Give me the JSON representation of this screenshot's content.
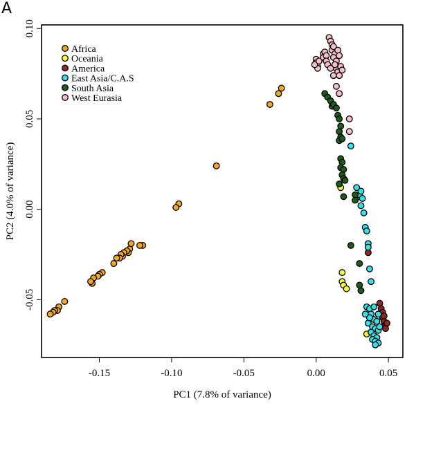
{
  "panel_label": "A",
  "chart_data": {
    "type": "scatter",
    "title": "",
    "xlabel": "PC1 (7.8% of variance)",
    "ylabel": "PC2 (4.0% of variance)",
    "xlim": [
      -0.19,
      0.06
    ],
    "ylim": [
      -0.082,
      0.102
    ],
    "xticks": [
      -0.15,
      -0.1,
      -0.05,
      0.0,
      0.05
    ],
    "xtick_labels": [
      "-0.15",
      "-0.10",
      "-0.05",
      "0.00",
      "0.05"
    ],
    "yticks": [
      -0.05,
      0.0,
      0.05,
      0.1
    ],
    "ytick_labels": [
      "-0.05",
      "0.00",
      "0.05",
      "0.10"
    ],
    "grid": false,
    "legend_position": "top-left",
    "series": [
      {
        "name": "Africa",
        "color": "#f5a623",
        "points": [
          [
            -0.024,
            0.067
          ],
          [
            -0.026,
            0.064
          ],
          [
            -0.032,
            0.058
          ],
          [
            -0.069,
            0.024
          ],
          [
            -0.095,
            0.003
          ],
          [
            -0.097,
            0.001
          ],
          [
            -0.12,
            -0.02
          ],
          [
            -0.122,
            -0.02
          ],
          [
            -0.128,
            -0.019
          ],
          [
            -0.129,
            -0.022
          ],
          [
            -0.13,
            -0.024
          ],
          [
            -0.131,
            -0.023
          ],
          [
            -0.133,
            -0.024
          ],
          [
            -0.134,
            -0.026
          ],
          [
            -0.135,
            -0.025
          ],
          [
            -0.136,
            -0.027
          ],
          [
            -0.138,
            -0.027
          ],
          [
            -0.14,
            -0.03
          ],
          [
            -0.148,
            -0.035
          ],
          [
            -0.15,
            -0.036
          ],
          [
            -0.151,
            -0.037
          ],
          [
            -0.154,
            -0.038
          ],
          [
            -0.155,
            -0.041
          ],
          [
            -0.156,
            -0.04
          ],
          [
            -0.174,
            -0.051
          ],
          [
            -0.178,
            -0.054
          ],
          [
            -0.179,
            -0.056
          ],
          [
            -0.181,
            -0.056
          ],
          [
            -0.182,
            -0.057
          ],
          [
            -0.184,
            -0.058
          ]
        ]
      },
      {
        "name": "Oceania",
        "color": "#ffff33",
        "points": [
          [
            0.017,
            0.012
          ],
          [
            0.018,
            -0.035
          ],
          [
            0.018,
            -0.04
          ],
          [
            0.019,
            -0.042
          ],
          [
            0.021,
            -0.044
          ],
          [
            0.035,
            -0.069
          ]
        ]
      },
      {
        "name": "America",
        "color": "#8b2a26",
        "points": [
          [
            0.036,
            -0.024
          ],
          [
            0.044,
            -0.052
          ],
          [
            0.045,
            -0.055
          ],
          [
            0.046,
            -0.057
          ],
          [
            0.046,
            -0.06
          ],
          [
            0.047,
            -0.062
          ],
          [
            0.048,
            -0.064
          ],
          [
            0.048,
            -0.066
          ],
          [
            0.049,
            -0.063
          ],
          [
            0.047,
            -0.059
          ]
        ]
      },
      {
        "name": "East Asia/C.A.S",
        "color": "#35e0e8",
        "points": [
          [
            0.024,
            0.035
          ],
          [
            0.028,
            0.012
          ],
          [
            0.029,
            0.007
          ],
          [
            0.03,
            0.008
          ],
          [
            0.031,
            0.01
          ],
          [
            0.032,
            0.006
          ],
          [
            0.031,
            0.002
          ],
          [
            0.033,
            -0.002
          ],
          [
            0.034,
            -0.01
          ],
          [
            0.035,
            -0.012
          ],
          [
            0.036,
            -0.019
          ],
          [
            0.036,
            -0.021
          ],
          [
            0.037,
            -0.033
          ],
          [
            0.038,
            -0.04
          ],
          [
            0.035,
            -0.054
          ],
          [
            0.037,
            -0.055
          ],
          [
            0.04,
            -0.054
          ],
          [
            0.038,
            -0.058
          ],
          [
            0.04,
            -0.061
          ],
          [
            0.042,
            -0.062
          ],
          [
            0.036,
            -0.063
          ],
          [
            0.039,
            -0.065
          ],
          [
            0.041,
            -0.066
          ],
          [
            0.043,
            -0.067
          ],
          [
            0.038,
            -0.068
          ],
          [
            0.04,
            -0.07
          ],
          [
            0.042,
            -0.071
          ],
          [
            0.039,
            -0.072
          ],
          [
            0.041,
            -0.073
          ],
          [
            0.043,
            -0.074
          ],
          [
            0.041,
            -0.075
          ],
          [
            0.044,
            -0.065
          ],
          [
            0.037,
            -0.06
          ],
          [
            0.043,
            -0.058
          ],
          [
            0.034,
            -0.058
          ]
        ]
      },
      {
        "name": "South Asia",
        "color": "#1e5c1e",
        "points": [
          [
            0.006,
            0.064
          ],
          [
            0.008,
            0.062
          ],
          [
            0.01,
            0.06
          ],
          [
            0.011,
            0.057
          ],
          [
            0.012,
            0.058
          ],
          [
            0.014,
            0.056
          ],
          [
            0.015,
            0.052
          ],
          [
            0.016,
            0.05
          ],
          [
            0.017,
            0.046
          ],
          [
            0.016,
            0.043
          ],
          [
            0.017,
            0.04
          ],
          [
            0.016,
            0.038
          ],
          [
            0.018,
            0.039
          ],
          [
            0.017,
            0.028
          ],
          [
            0.018,
            0.026
          ],
          [
            0.017,
            0.023
          ],
          [
            0.019,
            0.022
          ],
          [
            0.018,
            0.019
          ],
          [
            0.019,
            0.017
          ],
          [
            0.016,
            0.014
          ],
          [
            0.02,
            0.016
          ],
          [
            0.027,
            0.008
          ],
          [
            0.027,
            0.005
          ],
          [
            0.019,
            0.007
          ],
          [
            0.024,
            -0.02
          ],
          [
            0.03,
            -0.03
          ],
          [
            0.031,
            -0.045
          ],
          [
            0.03,
            -0.042
          ]
        ]
      },
      {
        "name": "West Eurasia",
        "color": "#f7bfc8",
        "points": [
          [
            0.0,
            0.083
          ],
          [
            0.0,
            0.081
          ],
          [
            0.001,
            0.079
          ],
          [
            0.001,
            0.078
          ],
          [
            -0.001,
            0.08
          ],
          [
            0.002,
            0.082
          ],
          [
            0.005,
            0.086
          ],
          [
            0.005,
            0.084
          ],
          [
            0.006,
            0.087
          ],
          [
            0.007,
            0.085
          ],
          [
            0.007,
            0.082
          ],
          [
            0.008,
            0.08
          ],
          [
            0.009,
            0.095
          ],
          [
            0.01,
            0.093
          ],
          [
            0.011,
            0.091
          ],
          [
            0.011,
            0.088
          ],
          [
            0.012,
            0.09
          ],
          [
            0.013,
            0.086
          ],
          [
            0.012,
            0.084
          ],
          [
            0.014,
            0.082
          ],
          [
            0.015,
            0.088
          ],
          [
            0.016,
            0.085
          ],
          [
            0.014,
            0.078
          ],
          [
            0.015,
            0.076
          ],
          [
            0.017,
            0.079
          ],
          [
            0.016,
            0.074
          ],
          [
            0.018,
            0.077
          ],
          [
            0.012,
            0.074
          ],
          [
            0.01,
            0.078
          ],
          [
            0.013,
            0.08
          ],
          [
            0.014,
            0.068
          ],
          [
            0.016,
            0.064
          ],
          [
            0.023,
            0.05
          ],
          [
            0.023,
            0.043
          ]
        ]
      }
    ]
  }
}
